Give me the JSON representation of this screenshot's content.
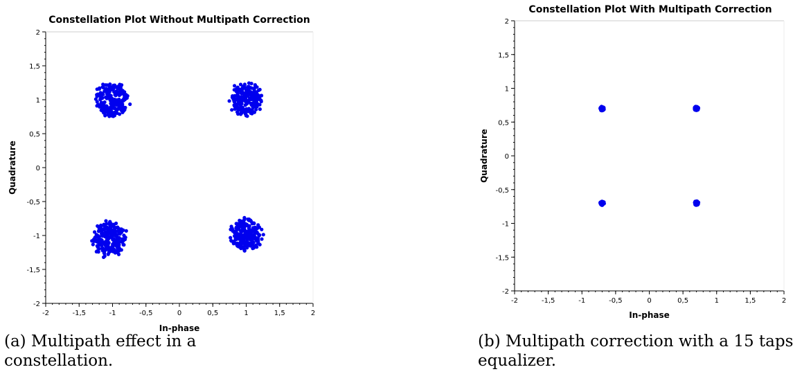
{
  "chart_data": [
    {
      "type": "scatter",
      "title": "Constellation Plot Without Multipath Correction",
      "xlabel": "In-phase",
      "ylabel": "Quadrature",
      "xlim": [
        -2,
        2
      ],
      "ylim": [
        -2,
        2
      ],
      "xticks": [
        "-2",
        "-1,5",
        "-1",
        "-0,5",
        "0",
        "0,5",
        "1",
        "1,5",
        "2"
      ],
      "yticks": [
        "2",
        "1,5",
        "1",
        "0,5",
        "0",
        "-0,5",
        "-1",
        "-1,5",
        "-2"
      ],
      "grid": false,
      "color": "#0000ee",
      "clusters": [
        {
          "x": -1.0,
          "y": 1.0,
          "spread": 0.22,
          "count": 230
        },
        {
          "x": 1.0,
          "y": 1.0,
          "spread": 0.21,
          "count": 230
        },
        {
          "x": -1.05,
          "y": -1.05,
          "spread": 0.22,
          "count": 230
        },
        {
          "x": 1.0,
          "y": -1.0,
          "spread": 0.21,
          "count": 230
        }
      ]
    },
    {
      "type": "scatter",
      "title": "Constellation Plot With Multipath Correction",
      "xlabel": "In-phase",
      "ylabel": "Quadrature",
      "xlim": [
        -2,
        2
      ],
      "ylim": [
        -2,
        2
      ],
      "xticks": [
        "-2",
        "-1,5",
        "-1",
        "-0,5",
        "0",
        "0,5",
        "1",
        "1,5",
        "2"
      ],
      "yticks": [
        "2",
        "1,5",
        "1",
        "0,5",
        "0",
        "-0,5",
        "-1",
        "-1,5",
        "-2"
      ],
      "grid": false,
      "color": "#0000ee",
      "clusters": [
        {
          "x": -0.7,
          "y": 0.7,
          "spread": 0.025,
          "count": 120
        },
        {
          "x": 0.7,
          "y": 0.7,
          "spread": 0.025,
          "count": 120
        },
        {
          "x": -0.7,
          "y": -0.7,
          "spread": 0.025,
          "count": 120
        },
        {
          "x": 0.7,
          "y": -0.7,
          "spread": 0.025,
          "count": 120
        }
      ]
    }
  ],
  "captions": [
    {
      "text": "(a) Multipath effect in a constellation."
    },
    {
      "line1": "(b) Multipath correction with a 15 taps",
      "line2": "equalizer."
    }
  ]
}
